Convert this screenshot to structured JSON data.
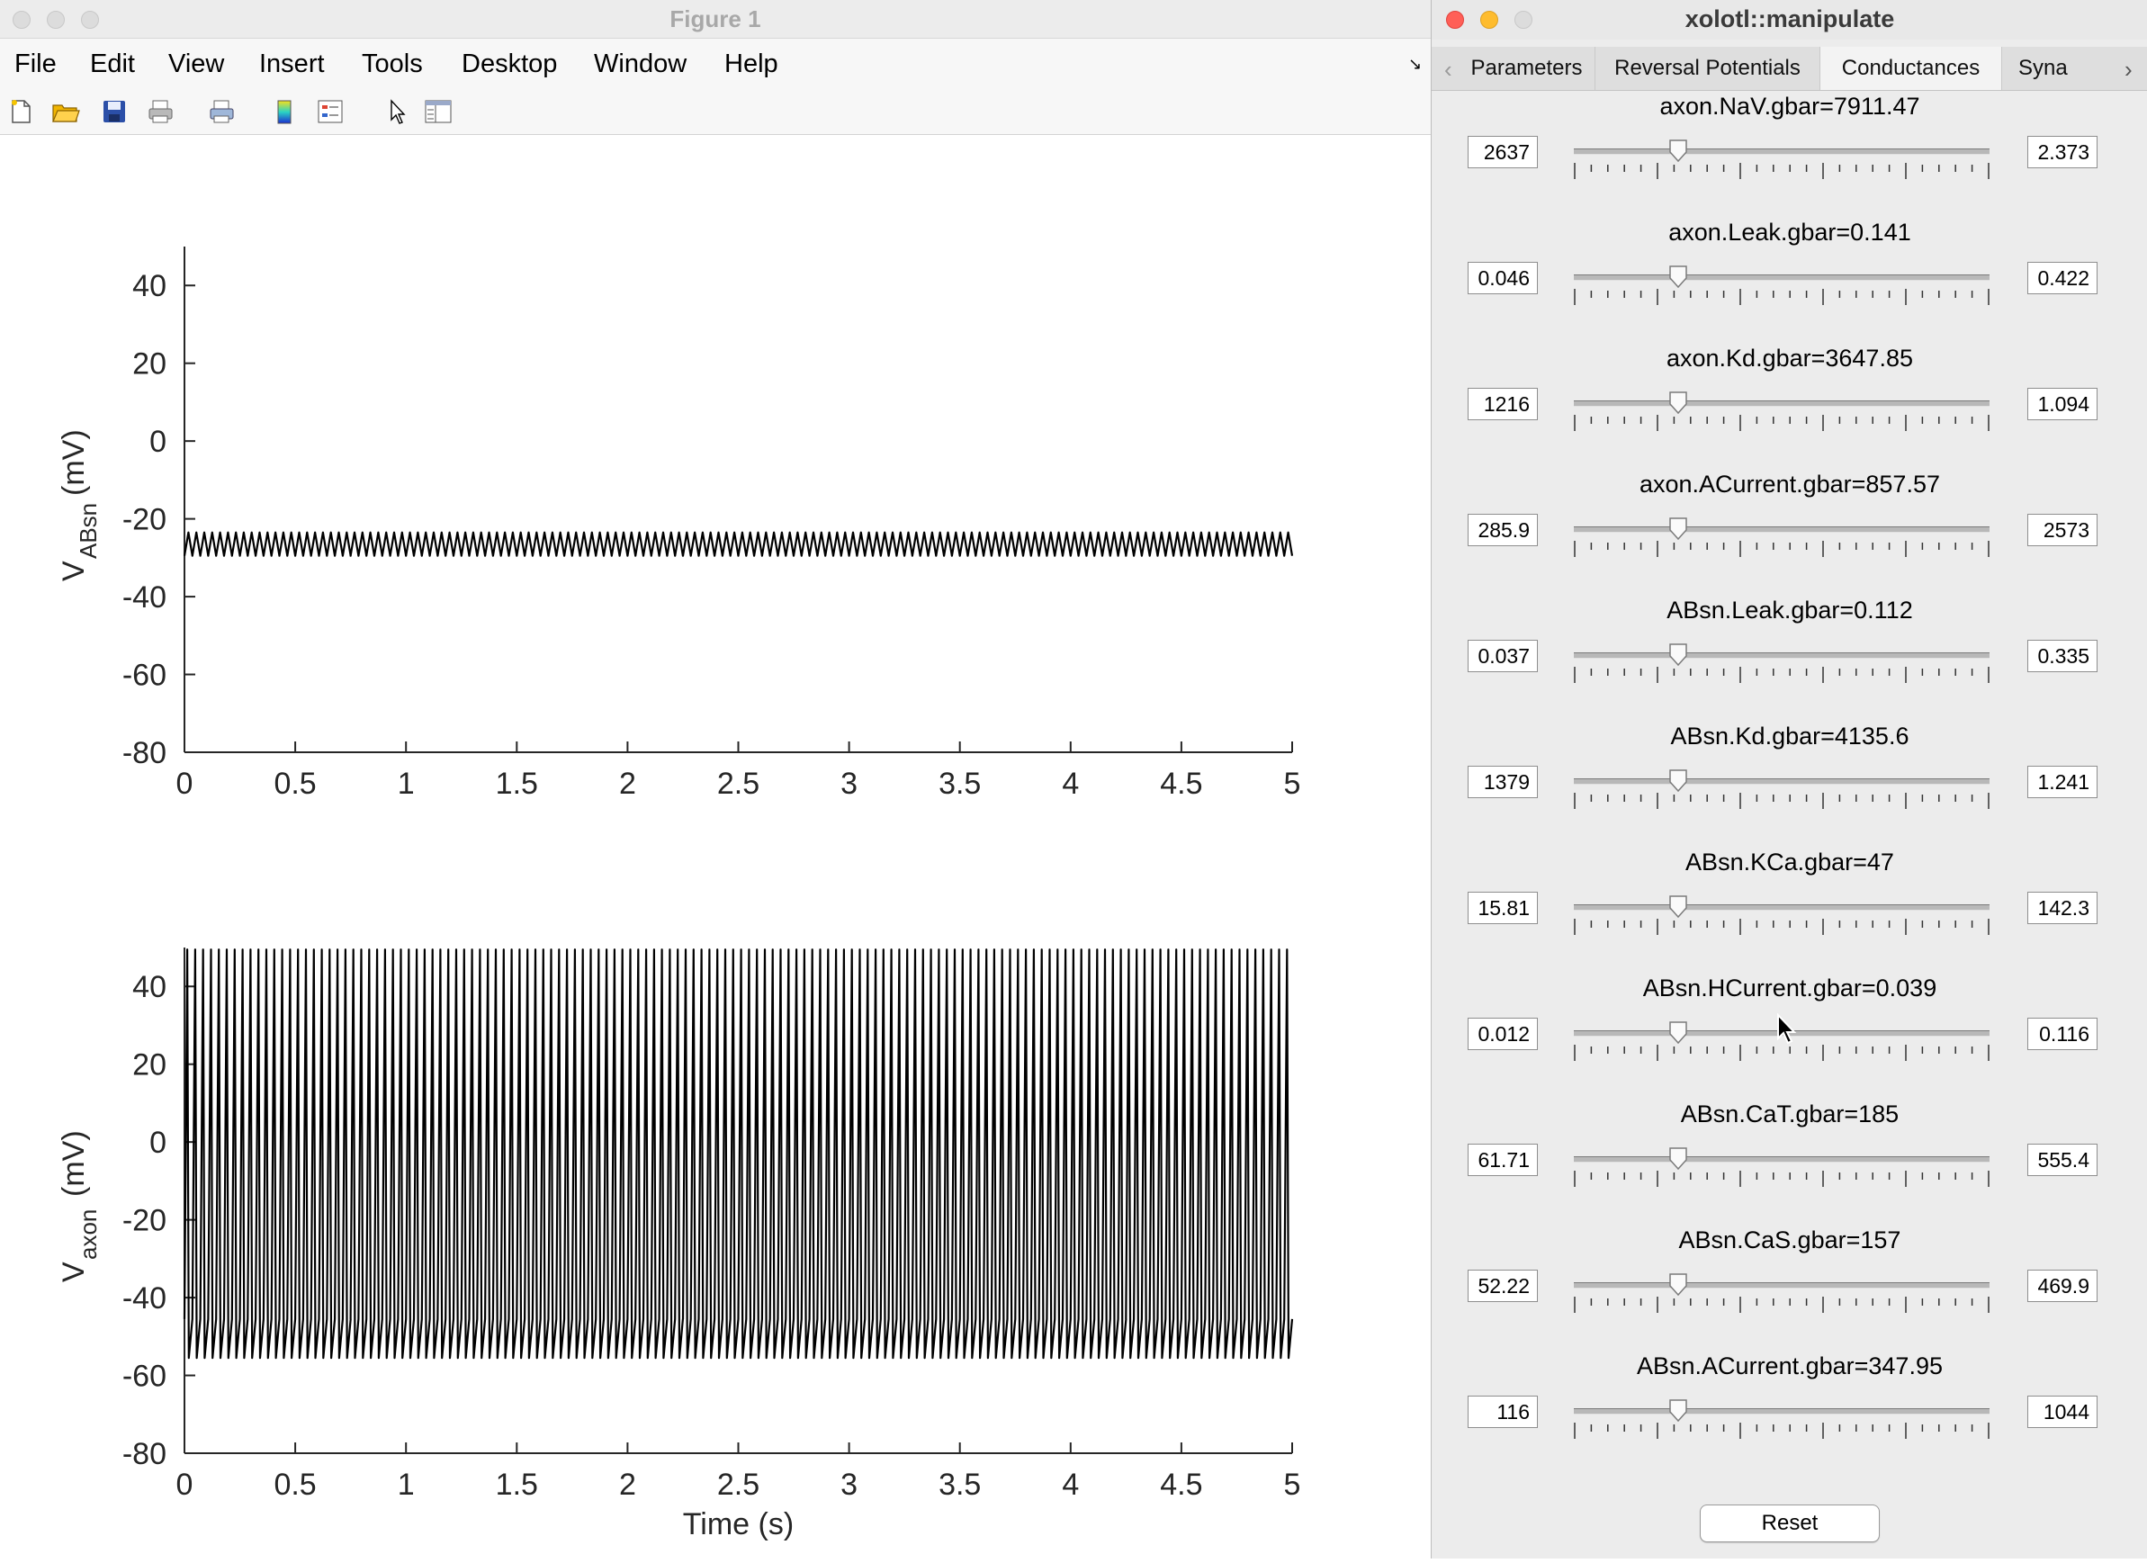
{
  "figure_window": {
    "title": "Figure 1",
    "menu": [
      "File",
      "Edit",
      "View",
      "Insert",
      "Tools",
      "Desktop",
      "Window",
      "Help"
    ],
    "toolbar_icons": [
      "new-figure-icon",
      "open-file-icon",
      "save-icon",
      "print-icon",
      "print-preview-icon",
      "colorbar-icon",
      "legend-icon",
      "pointer-icon",
      "property-inspector-icon"
    ]
  },
  "chart_data": [
    {
      "type": "line",
      "title": "",
      "xlabel": "",
      "ylabel_main": "V",
      "ylabel_sub": "ABsn",
      "ylabel_unit": "(mV)",
      "xlim": [
        0,
        5
      ],
      "ylim": [
        -80,
        50
      ],
      "xticks": [
        "0",
        "0.5",
        "1",
        "1.5",
        "2",
        "2.5",
        "3",
        "3.5",
        "4",
        "4.5",
        "5"
      ],
      "yticks": [
        "40",
        "20",
        "0",
        "-20",
        "-40",
        "-60",
        "-80"
      ],
      "ytick_values": [
        40,
        20,
        0,
        -20,
        -40,
        -60,
        -80
      ],
      "series": [
        {
          "oscillation_count": 140,
          "min": -29.5,
          "max": -23.5
        }
      ]
    },
    {
      "type": "line",
      "title": "",
      "xlabel": "Time (s)",
      "ylabel_main": "V",
      "ylabel_sub": "axon",
      "ylabel_unit": "(mV)",
      "xlim": [
        0,
        5
      ],
      "ylim": [
        -80,
        50
      ],
      "xticks": [
        "0",
        "0.5",
        "1",
        "1.5",
        "2",
        "2.5",
        "3",
        "3.5",
        "4",
        "4.5",
        "5"
      ],
      "yticks": [
        "40",
        "20",
        "0",
        "-20",
        "-40",
        "-60",
        "-80"
      ],
      "ytick_values": [
        40,
        20,
        0,
        -20,
        -40,
        -60,
        -80
      ],
      "series": [
        {
          "oscillation_count": 140,
          "min": -55.5,
          "max": 49.5
        }
      ]
    }
  ],
  "manipulate_window": {
    "title": "xolotl::manipulate",
    "tabs": [
      "Parameters",
      "Reversal Potentials",
      "Conductances",
      "Syna"
    ],
    "active_tab": "Conductances",
    "sliders": [
      {
        "label": "axon.NaV.gbar=7911.47",
        "min": "2637",
        "max": "2.373",
        "value_fraction": 0.25
      },
      {
        "label": "axon.Leak.gbar=0.141",
        "min": "0.046",
        "max": "0.422",
        "value_fraction": 0.25
      },
      {
        "label": "axon.Kd.gbar=3647.85",
        "min": "1216",
        "max": "1.094",
        "value_fraction": 0.25
      },
      {
        "label": "axon.ACurrent.gbar=857.57",
        "min": "285.9",
        "max": "2573",
        "value_fraction": 0.25
      },
      {
        "label": "ABsn.Leak.gbar=0.112",
        "min": "0.037",
        "max": "0.335",
        "value_fraction": 0.25
      },
      {
        "label": "ABsn.Kd.gbar=4135.6",
        "min": "1379",
        "max": "1.241",
        "value_fraction": 0.25
      },
      {
        "label": "ABsn.KCa.gbar=47",
        "min": "15.81",
        "max": "142.3",
        "value_fraction": 0.25
      },
      {
        "label": "ABsn.HCurrent.gbar=0.039",
        "min": "0.012",
        "max": "0.116",
        "value_fraction": 0.25
      },
      {
        "label": "ABsn.CaT.gbar=185",
        "min": "61.71",
        "max": "555.4",
        "value_fraction": 0.25
      },
      {
        "label": "ABsn.CaS.gbar=157",
        "min": "52.22",
        "max": "469.9",
        "value_fraction": 0.25
      },
      {
        "label": "ABsn.ACurrent.gbar=347.95",
        "min": "116",
        "max": "1044",
        "value_fraction": 0.25
      }
    ],
    "reset_label": "Reset",
    "colors": {
      "close": "#ff5f57",
      "minimize": "#febc2e",
      "zoom_inactive": "#d0d0d0",
      "trace": "#000000"
    }
  }
}
